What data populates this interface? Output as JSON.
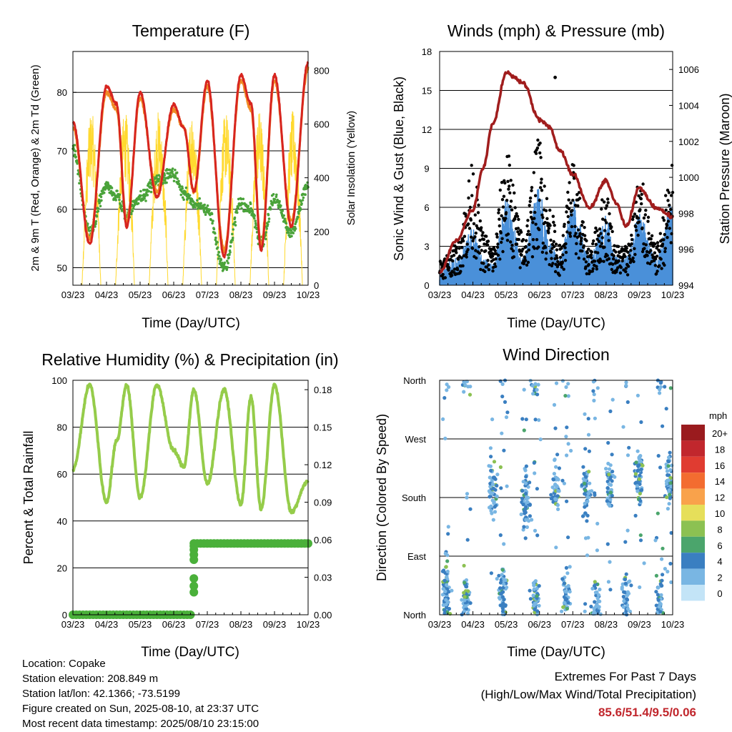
{
  "x_ticks": [
    "03/23",
    "04/23",
    "05/23",
    "06/23",
    "07/23",
    "08/23",
    "09/23",
    "10/23"
  ],
  "legend": {
    "title": "mph",
    "labels": [
      "20+",
      "18",
      "16",
      "14",
      "12",
      "10",
      "8",
      "6",
      "4",
      "2",
      "0"
    ],
    "colors": [
      "#9a1b1e",
      "#c1272d",
      "#e03c31",
      "#f36c30",
      "#f9a24b",
      "#e6df5a",
      "#8cc152",
      "#4ba56c",
      "#3a7fc1",
      "#79b6e3",
      "#c3e4f7"
    ]
  },
  "colors": {
    "temp_2m": "#d7251f",
    "temp_9m": "#f08a24",
    "dewpoint": "#4aa33a",
    "solar": "#ffd92f",
    "wind": "#4a90d9",
    "gust": "#000000",
    "pressure": "#a01d1d",
    "rh": "#95cc4a",
    "rain": "#4ab03a",
    "extremes": "#c1272d"
  },
  "info": {
    "location": "Location: Copake",
    "elevation": "Station elevation: 208.849 m",
    "latlon": "Station lat/lon: 42.1366; -73.5199",
    "created": "Figure created on Sun, 2025-08-10, at 23:37 UTC",
    "recent": "Most recent data timestamp: 2025/08/10 23:15:00"
  },
  "extremes": {
    "line1": "Extremes For Past 7 Days",
    "line2": "(High/Low/Max Wind/Total Precipitation)",
    "values": "85.6/51.4/9.5/0.06"
  },
  "chart_data": [
    {
      "type": "line",
      "title": "Temperature (F)",
      "xlabel": "Time (Day/UTC)",
      "ylabel": "2m & 9m T (Red, Orange) & 2m Td (Green)",
      "ylabel_right": "Solar Insolation (Yellow)",
      "ylim": [
        47,
        87
      ],
      "yticks": [
        50,
        60,
        70,
        80
      ],
      "ylim_right": [
        0,
        870
      ],
      "yticks_right": [
        0,
        200,
        400,
        600,
        800
      ],
      "x": [
        0,
        0.5,
        1,
        1.3,
        1.6,
        2,
        2.5,
        3,
        3.3,
        3.6,
        4,
        4.5,
        5,
        5.3,
        5.6,
        6,
        6.5,
        7
      ],
      "series": [
        {
          "name": "2m T",
          "values": [
            75,
            54,
            81,
            78,
            57,
            80,
            62,
            78,
            74,
            63,
            82,
            52,
            83,
            78,
            53,
            83,
            57,
            85
          ]
        },
        {
          "name": "9m T",
          "values": [
            74,
            55,
            80,
            77,
            58,
            79,
            63,
            77,
            74,
            63,
            81,
            53,
            82,
            77,
            54,
            82,
            58,
            84
          ]
        },
        {
          "name": "2m Td",
          "values": [
            70,
            56,
            64,
            62,
            59,
            62,
            65,
            66,
            63,
            61,
            60,
            50,
            61,
            60,
            54,
            62,
            56,
            64
          ]
        },
        {
          "name": "Solar",
          "values": [
            700,
            0,
            810,
            0,
            0,
            850,
            0,
            820,
            0,
            0,
            820,
            0,
            800,
            0,
            0,
            790,
            0,
            810
          ]
        }
      ]
    },
    {
      "type": "line",
      "title": "Winds (mph) & Pressure (mb)",
      "xlabel": "Time (Day/UTC)",
      "ylabel": "Sonic Wind & Gust (Blue, Black)",
      "ylabel_right": "Station Pressure (Maroon)",
      "ylim": [
        0,
        18
      ],
      "yticks": [
        0,
        3,
        6,
        9,
        12,
        15,
        18
      ],
      "ylim_right": [
        994,
        1007
      ],
      "yticks_right": [
        994,
        996,
        998,
        1000,
        1002,
        1004,
        1006
      ],
      "x": [
        0,
        0.5,
        1,
        1.3,
        1.6,
        2,
        2.5,
        3,
        3.3,
        3.6,
        4,
        4.5,
        5,
        5.3,
        5.6,
        6,
        6.5,
        7
      ],
      "series": [
        {
          "name": "Wind",
          "values": [
            1,
            2,
            4,
            2,
            1.5,
            6,
            2,
            7,
            3,
            2,
            6,
            2,
            5,
            2,
            2,
            5,
            2,
            6
          ]
        },
        {
          "name": "Gust",
          "values": [
            2,
            3,
            9,
            4,
            3,
            10,
            4,
            11,
            6,
            3,
            9,
            3,
            7,
            3,
            3,
            8,
            3,
            9
          ]
        },
        {
          "name": "Pressure",
          "values": [
            994.7,
            996.5,
            998.2,
            1000.5,
            1003,
            1005.8,
            1005.3,
            1003.2,
            1002.8,
            1001.5,
            1000.2,
            998.3,
            999.8,
            998.6,
            997.3,
            999.4,
            998.3,
            997.8
          ]
        }
      ]
    },
    {
      "type": "line",
      "title": "Relative Humidity (%) & Precipitation (in)",
      "xlabel": "Time (Day/UTC)",
      "ylabel": "Percent & Total Rainfall",
      "ylim": [
        0,
        100
      ],
      "yticks": [
        0,
        20,
        40,
        60,
        80,
        100
      ],
      "ylim_right": [
        0,
        0.1875
      ],
      "yticks_right": [
        "0.00",
        "0.03",
        "0.06",
        "0.09",
        "0.12",
        "0.15",
        "0.18"
      ],
      "x": [
        0,
        0.5,
        1,
        1.3,
        1.6,
        2,
        2.5,
        3,
        3.3,
        3.6,
        4,
        4.5,
        5,
        5.3,
        5.6,
        6,
        6.5,
        7
      ],
      "series": [
        {
          "name": "RH",
          "values": [
            62,
            98,
            48,
            74,
            98,
            50,
            98,
            70,
            63,
            96,
            56,
            96,
            47,
            93,
            45,
            98,
            44,
            57
          ]
        },
        {
          "name": "Rain",
          "values": [
            0,
            0,
            0,
            0,
            0,
            0,
            0,
            0,
            0,
            0.06,
            0.06,
            0.06,
            0.06,
            0.06,
            0.06,
            0.06,
            0.06,
            0.06
          ]
        }
      ]
    },
    {
      "type": "scatter",
      "title": "Wind Direction",
      "xlabel": "Time (Day/UTC)",
      "ylabel": "Direction (Colored By Speed)",
      "ylim": [
        0,
        360
      ],
      "yticks": [
        "North",
        "East",
        "South",
        "West",
        "North"
      ],
      "x": [
        0.2,
        0.8,
        1.6,
        1.9,
        2.6,
        2.9,
        3.5,
        3.8,
        4.4,
        4.7,
        5.1,
        5.6,
        6.0,
        6.6,
        6.9
      ],
      "series": [
        {
          "name": "Direction",
          "values": [
            30,
            20,
            190,
            30,
            180,
            20,
            200,
            25,
            190,
            20,
            200,
            30,
            210,
            25,
            200
          ]
        }
      ]
    }
  ]
}
